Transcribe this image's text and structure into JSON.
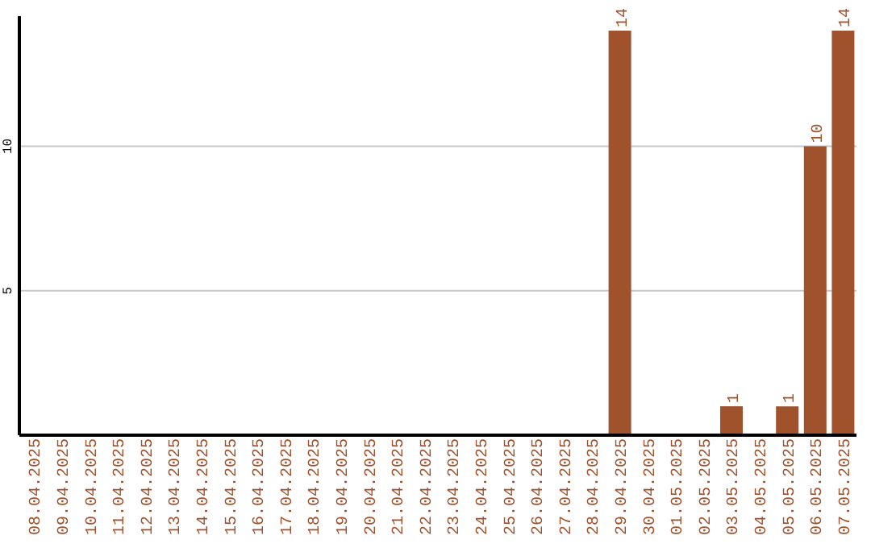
{
  "chart_data": {
    "type": "bar",
    "categories": [
      "08.04.2025",
      "09.04.2025",
      "10.04.2025",
      "11.04.2025",
      "12.04.2025",
      "13.04.2025",
      "14.04.2025",
      "15.04.2025",
      "16.04.2025",
      "17.04.2025",
      "18.04.2025",
      "19.04.2025",
      "20.04.2025",
      "21.04.2025",
      "22.04.2025",
      "23.04.2025",
      "24.04.2025",
      "25.04.2025",
      "26.04.2025",
      "27.04.2025",
      "28.04.2025",
      "29.04.2025",
      "30.04.2025",
      "01.05.2025",
      "02.05.2025",
      "03.05.2025",
      "04.05.2025",
      "05.05.2025",
      "06.05.2025",
      "07.05.2025"
    ],
    "values": [
      0,
      0,
      0,
      0,
      0,
      0,
      0,
      0,
      0,
      0,
      0,
      0,
      0,
      0,
      0,
      0,
      0,
      0,
      0,
      0,
      0,
      14,
      0,
      0,
      0,
      1,
      0,
      1,
      10,
      14
    ],
    "value_labels": [
      null,
      null,
      null,
      null,
      null,
      null,
      null,
      null,
      null,
      null,
      null,
      null,
      null,
      null,
      null,
      null,
      null,
      null,
      null,
      null,
      null,
      "14",
      null,
      null,
      null,
      "1",
      null,
      "1",
      "10",
      "14"
    ],
    "color": "#a0522d",
    "ylim": [
      0,
      14.5
    ],
    "yticks": [
      5,
      10
    ],
    "grid": "y"
  }
}
